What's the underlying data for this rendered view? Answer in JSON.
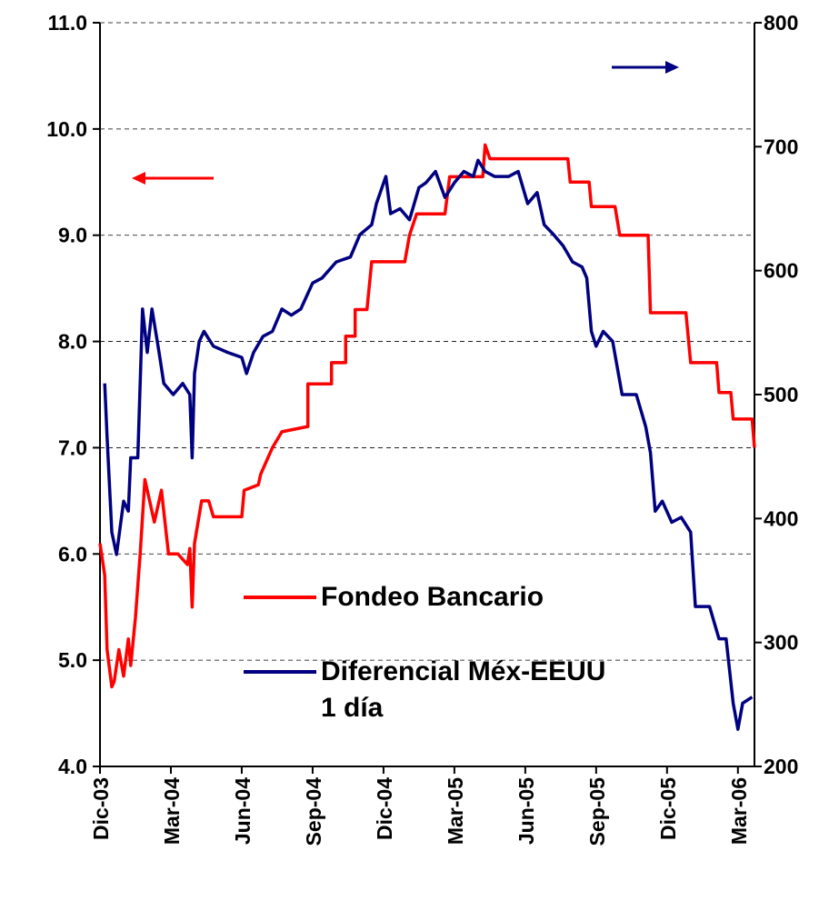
{
  "chart_data": {
    "type": "line",
    "xlim": [
      0,
      27.7
    ],
    "xticks": [
      {
        "value": 0,
        "label": "Dic-03"
      },
      {
        "value": 3,
        "label": "Mar-04"
      },
      {
        "value": 6,
        "label": "Jun-04"
      },
      {
        "value": 9,
        "label": "Sep-04"
      },
      {
        "value": 12,
        "label": "Dic-04"
      },
      {
        "value": 15,
        "label": "Mar-05"
      },
      {
        "value": 18,
        "label": "Jun-05"
      },
      {
        "value": 21,
        "label": "Sep-05"
      },
      {
        "value": 24,
        "label": "Dic-05"
      },
      {
        "value": 27,
        "label": "Mar-06"
      }
    ],
    "ylim": [
      4,
      11
    ],
    "yticks": [
      {
        "value": 4,
        "label": "4.0"
      },
      {
        "value": 5,
        "label": "5.0"
      },
      {
        "value": 6,
        "label": "6.0"
      },
      {
        "value": 7,
        "label": "7.0"
      },
      {
        "value": 8,
        "label": "8.0"
      },
      {
        "value": 9,
        "label": "9.0"
      },
      {
        "value": 10,
        "label": "10.0"
      },
      {
        "value": 11,
        "label": "11.0"
      }
    ],
    "y2lim": [
      200,
      800
    ],
    "y2ticks": [
      200,
      300,
      400,
      500,
      600,
      700,
      800
    ],
    "grid": true,
    "series": [
      {
        "name": "Fondeo Bancario",
        "color": "#ff0000",
        "x": [
          0.0,
          0.2,
          0.3,
          0.5,
          0.6,
          0.8,
          1.0,
          1.2,
          1.3,
          1.5,
          1.7,
          1.9,
          2.1,
          2.3,
          2.6,
          2.9,
          3.3,
          3.7,
          3.8,
          3.9,
          4.0,
          4.3,
          4.6,
          4.8,
          6.0,
          6.1,
          6.7,
          6.8,
          7.1,
          7.3,
          7.7,
          8.8,
          8.8,
          9.8,
          9.8,
          10.4,
          10.4,
          10.8,
          10.8,
          11.3,
          11.5,
          12.9,
          13.1,
          13.4,
          14.6,
          14.8,
          16.2,
          16.3,
          16.5,
          19.8,
          19.9,
          20.7,
          20.8,
          21.8,
          22.0,
          23.2,
          23.3,
          24.8,
          25.0,
          26.1,
          26.2,
          26.7,
          26.8,
          27.6,
          27.7
        ],
        "values": [
          6.1,
          5.8,
          5.1,
          4.75,
          4.8,
          5.1,
          4.85,
          5.2,
          4.95,
          5.4,
          6.0,
          6.7,
          6.5,
          6.3,
          6.6,
          6.0,
          6.0,
          5.9,
          6.05,
          5.5,
          6.1,
          6.5,
          6.5,
          6.35,
          6.35,
          6.6,
          6.65,
          6.75,
          6.9,
          7.0,
          7.15,
          7.2,
          7.6,
          7.6,
          7.8,
          7.8,
          8.05,
          8.05,
          8.3,
          8.3,
          8.75,
          8.75,
          9.0,
          9.2,
          9.2,
          9.55,
          9.55,
          9.85,
          9.72,
          9.72,
          9.5,
          9.5,
          9.27,
          9.27,
          9.0,
          9.0,
          8.27,
          8.27,
          7.8,
          7.8,
          7.52,
          7.52,
          7.27,
          7.27,
          7.0
        ]
      },
      {
        "name": "Diferencial Méx-EEUU 1 día",
        "color": "#000080",
        "axis": "y2",
        "x": [
          0.2,
          0.3,
          0.5,
          0.7,
          1.0,
          1.2,
          1.3,
          1.6,
          1.8,
          2.0,
          2.2,
          2.5,
          2.7,
          3.1,
          3.5,
          3.8,
          3.9,
          4.0,
          4.2,
          4.4,
          4.8,
          5.4,
          6.0,
          6.2,
          6.5,
          6.9,
          7.3,
          7.7,
          8.1,
          8.5,
          9.0,
          9.4,
          10.0,
          10.6,
          11.0,
          11.5,
          11.7,
          12.1,
          12.3,
          12.7,
          13.1,
          13.5,
          13.8,
          14.2,
          14.6,
          15.0,
          15.4,
          15.8,
          16.0,
          16.3,
          16.7,
          17.3,
          17.7,
          18.1,
          18.5,
          18.8,
          19.2,
          19.6,
          20.0,
          20.4,
          20.6,
          20.8,
          21.0,
          21.3,
          21.7,
          22.1,
          22.7,
          23.1,
          23.3,
          23.5,
          23.8,
          24.2,
          24.6,
          25.0,
          25.2,
          25.8,
          26.2,
          26.5,
          26.8,
          27.0,
          27.2,
          27.6
        ],
        "values": [
          509,
          466,
          389,
          371,
          414,
          406,
          449,
          449,
          569,
          534,
          569,
          534,
          509,
          500,
          509,
          500,
          449,
          517,
          543,
          551,
          539,
          534,
          530,
          517,
          534,
          547,
          551,
          569,
          564,
          569,
          590,
          594,
          607,
          611,
          629,
          637,
          654,
          676,
          646,
          650,
          641,
          667,
          671,
          680,
          659,
          671,
          680,
          676,
          689,
          680,
          676,
          676,
          680,
          654,
          663,
          637,
          629,
          620,
          607,
          603,
          594,
          551,
          539,
          551,
          543,
          500,
          500,
          474,
          453,
          406,
          414,
          397,
          401,
          389,
          329,
          329,
          303,
          303,
          251,
          230,
          251,
          256
        ]
      }
    ]
  }
}
